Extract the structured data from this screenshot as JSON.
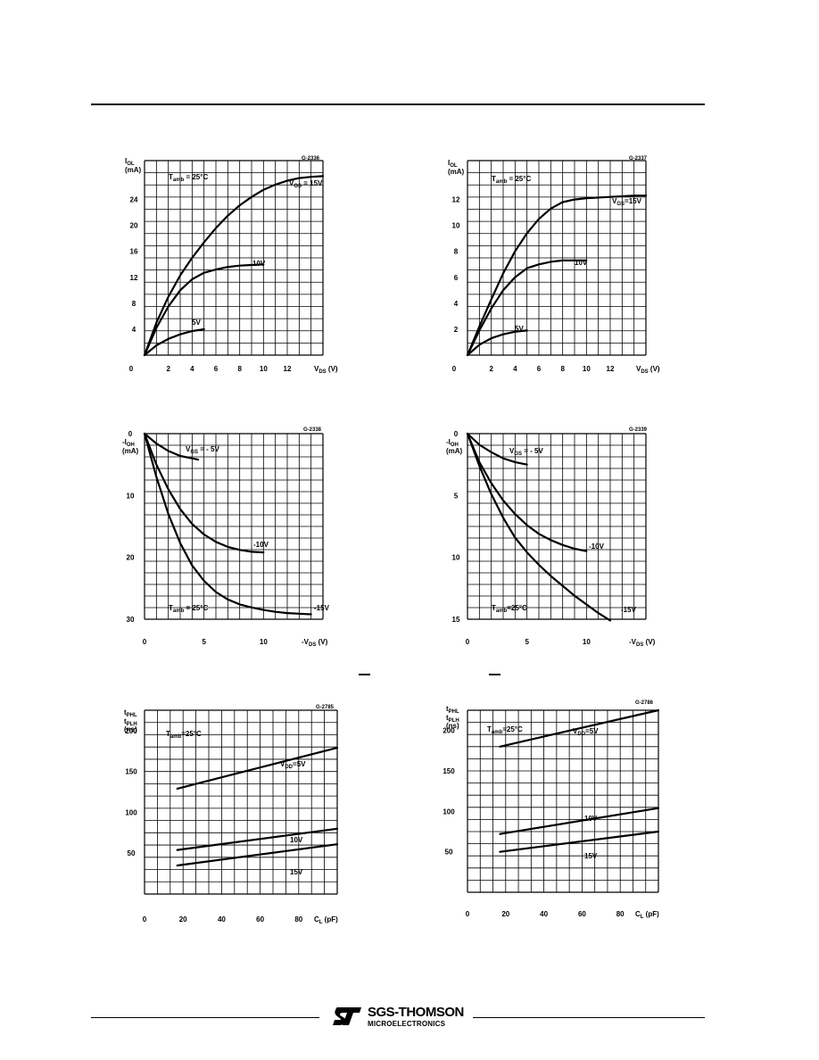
{
  "chart_data": [
    {
      "type": "line",
      "code": "G-2336",
      "ylabel": "I",
      "ylabel_sub": "OL",
      "yunit": "(mA)",
      "xlabel": "V",
      "xlabel_sub": "DS",
      "xunit": "(V)",
      "xlim": [
        0,
        15
      ],
      "ylim": [
        0,
        30
      ],
      "xticks": [
        "0",
        "2",
        "4",
        "6",
        "8",
        "10",
        "12"
      ],
      "yticks": [
        "4",
        "8",
        "12",
        "16",
        "20",
        "24"
      ],
      "annotation": "T",
      "annotation_sub": "amb",
      "annotation_rest": " = 25°C",
      "series": [
        {
          "name": "V",
          "name_sub": "GS",
          "name_rest": " = 15V",
          "points": [
            [
              0,
              0
            ],
            [
              1,
              5
            ],
            [
              2,
              9
            ],
            [
              3,
              12.3
            ],
            [
              4,
              15
            ],
            [
              5,
              17.4
            ],
            [
              6,
              19.6
            ],
            [
              7,
              21.5
            ],
            [
              8,
              23.1
            ],
            [
              9,
              24.4
            ],
            [
              10,
              25.5
            ],
            [
              11,
              26.3
            ],
            [
              12,
              26.9
            ],
            [
              13,
              27.3
            ],
            [
              14,
              27.5
            ],
            [
              15,
              27.6
            ]
          ]
        },
        {
          "name": "10V",
          "points": [
            [
              0,
              0
            ],
            [
              1,
              4.2
            ],
            [
              2,
              7.5
            ],
            [
              3,
              10
            ],
            [
              4,
              11.7
            ],
            [
              5,
              12.7
            ],
            [
              6,
              13.2
            ],
            [
              7,
              13.6
            ],
            [
              8,
              13.8
            ],
            [
              9,
              13.9
            ],
            [
              10,
              14
            ]
          ]
        },
        {
          "name": "5V",
          "points": [
            [
              0,
              0
            ],
            [
              1,
              1.5
            ],
            [
              2,
              2.5
            ],
            [
              3,
              3.2
            ],
            [
              4,
              3.7
            ],
            [
              5,
              4
            ]
          ]
        }
      ]
    },
    {
      "type": "line",
      "code": "G-2337",
      "ylabel": "I",
      "ylabel_sub": "OL",
      "yunit": "(mA)",
      "xlabel": "V",
      "xlabel_sub": "DS",
      "xunit": "(V)",
      "xlim": [
        0,
        15
      ],
      "ylim": [
        0,
        15
      ],
      "xticks": [
        "0",
        "2",
        "4",
        "6",
        "8",
        "10",
        "12"
      ],
      "yticks": [
        "2",
        "4",
        "6",
        "8",
        "10",
        "12"
      ],
      "annotation": "T",
      "annotation_sub": "amb",
      "annotation_rest": " = 25°C",
      "series": [
        {
          "name": "V",
          "name_sub": "GS",
          "name_rest": "=15V",
          "points": [
            [
              0,
              0
            ],
            [
              1,
              2.2
            ],
            [
              2,
              4.3
            ],
            [
              3,
              6.3
            ],
            [
              4,
              8
            ],
            [
              5,
              9.4
            ],
            [
              6,
              10.5
            ],
            [
              7,
              11.3
            ],
            [
              8,
              11.8
            ],
            [
              9,
              12
            ],
            [
              10,
              12.1
            ],
            [
              12,
              12.2
            ],
            [
              14,
              12.3
            ],
            [
              15,
              12.3
            ]
          ]
        },
        {
          "name": "10V",
          "points": [
            [
              0,
              0
            ],
            [
              1,
              1.9
            ],
            [
              2,
              3.6
            ],
            [
              3,
              5
            ],
            [
              4,
              6
            ],
            [
              5,
              6.7
            ],
            [
              6,
              7
            ],
            [
              7,
              7.2
            ],
            [
              8,
              7.3
            ],
            [
              9,
              7.3
            ],
            [
              10,
              7.3
            ]
          ]
        },
        {
          "name": "5V",
          "points": [
            [
              0,
              0
            ],
            [
              1,
              0.8
            ],
            [
              2,
              1.3
            ],
            [
              3,
              1.6
            ],
            [
              4,
              1.8
            ],
            [
              5,
              1.9
            ]
          ]
        }
      ]
    },
    {
      "type": "line",
      "code": "G-2338",
      "ylabel": "-I",
      "ylabel_sub": "OH",
      "yunit": "(mA)",
      "xlabel": "-V",
      "xlabel_sub": "DS",
      "xunit": "(V)",
      "xlim": [
        0,
        15
      ],
      "ylim": [
        0,
        30
      ],
      "yinverted": true,
      "xticks": [
        "0",
        "5",
        "10"
      ],
      "yticks": [
        "0",
        "10",
        "20",
        "30"
      ],
      "annotation": "T",
      "annotation_sub": "amb",
      "annotation_rest": " = 25°C",
      "series": [
        {
          "name": "V",
          "name_sub": "GS",
          "name_rest": " = - 5V",
          "points": [
            [
              0,
              0
            ],
            [
              1,
              1.6
            ],
            [
              2,
              2.8
            ],
            [
              3,
              3.6
            ],
            [
              4,
              4
            ],
            [
              4.5,
              4.2
            ]
          ]
        },
        {
          "name": "-10V",
          "points": [
            [
              0,
              0
            ],
            [
              1,
              5
            ],
            [
              2,
              9
            ],
            [
              3,
              12.2
            ],
            [
              4,
              14.6
            ],
            [
              5,
              16.3
            ],
            [
              6,
              17.5
            ],
            [
              7,
              18.3
            ],
            [
              8,
              18.8
            ],
            [
              9,
              19.1
            ],
            [
              10,
              19.2
            ]
          ]
        },
        {
          "name": "-15V",
          "points": [
            [
              0,
              0
            ],
            [
              1,
              7
            ],
            [
              2,
              13
            ],
            [
              3,
              17.7
            ],
            [
              4,
              21.3
            ],
            [
              5,
              23.8
            ],
            [
              6,
              25.6
            ],
            [
              7,
              26.8
            ],
            [
              8,
              27.6
            ],
            [
              9,
              28.1
            ],
            [
              10,
              28.5
            ],
            [
              11,
              28.8
            ],
            [
              12,
              29
            ],
            [
              13,
              29.1
            ],
            [
              14,
              29.2
            ]
          ]
        }
      ]
    },
    {
      "type": "line",
      "code": "G-2339",
      "ylabel": "-I",
      "ylabel_sub": "OH",
      "yunit": "(mA)",
      "xlabel": "-V",
      "xlabel_sub": "DS",
      "xunit": "(V)",
      "xlim": [
        0,
        15
      ],
      "ylim": [
        0,
        15
      ],
      "yinverted": true,
      "xticks": [
        "0",
        "5",
        "10"
      ],
      "yticks": [
        "0",
        "5",
        "10",
        "15"
      ],
      "annotation": "T",
      "annotation_sub": "amb",
      "annotation_rest": "=25°C",
      "series": [
        {
          "name": "V",
          "name_sub": "GS",
          "name_rest": " = - 5V",
          "points": [
            [
              0,
              0
            ],
            [
              1,
              0.9
            ],
            [
              2,
              1.5
            ],
            [
              3,
              2
            ],
            [
              4,
              2.3
            ],
            [
              5,
              2.5
            ]
          ]
        },
        {
          "name": "-10V",
          "points": [
            [
              0,
              0
            ],
            [
              1,
              2.3
            ],
            [
              2,
              4
            ],
            [
              3,
              5.4
            ],
            [
              4,
              6.5
            ],
            [
              5,
              7.4
            ],
            [
              6,
              8.1
            ],
            [
              7,
              8.6
            ],
            [
              8,
              9
            ],
            [
              9,
              9.3
            ],
            [
              10,
              9.5
            ]
          ]
        },
        {
          "name": "-15V",
          "points": [
            [
              0,
              0
            ],
            [
              1,
              2.6
            ],
            [
              2,
              4.9
            ],
            [
              3,
              6.8
            ],
            [
              4,
              8.4
            ],
            [
              5,
              9.6
            ],
            [
              6,
              10.6
            ],
            [
              7,
              11.5
            ],
            [
              8,
              12.3
            ],
            [
              9,
              13.1
            ],
            [
              10,
              13.8
            ],
            [
              11,
              14.5
            ],
            [
              12,
              15.1
            ]
          ]
        }
      ]
    },
    {
      "type": "line",
      "code": "G-2785",
      "ylabel": "t",
      "ylabel_sub": "PHL",
      "ylabel2": "t",
      "ylabel2_sub": "PLH",
      "yunit": "(ns)",
      "xlabel": "C",
      "xlabel_sub": "L",
      "xunit": "(pF)",
      "xlim": [
        0,
        100
      ],
      "ylim": [
        0,
        225
      ],
      "xticks": [
        "0",
        "20",
        "40",
        "60",
        "80"
      ],
      "yticks": [
        "50",
        "100",
        "150",
        "200"
      ],
      "annotation": "T",
      "annotation_sub": "amb",
      "annotation_rest": "=25°C",
      "series": [
        {
          "name": "V",
          "name_sub": "DD",
          "name_rest": "=5V",
          "points": [
            [
              17,
              129
            ],
            [
              100,
              179
            ]
          ]
        },
        {
          "name": "10V",
          "points": [
            [
              17,
              54
            ],
            [
              100,
              80
            ]
          ]
        },
        {
          "name": "15V",
          "points": [
            [
              17,
              35
            ],
            [
              100,
              61
            ]
          ]
        }
      ]
    },
    {
      "type": "line",
      "code": "G-2786",
      "ylabel": "t",
      "ylabel_sub": "PHL",
      "ylabel2": "t",
      "ylabel2_sub": "PLH",
      "yunit": "(ns)",
      "xlabel": "C",
      "xlabel_sub": "L",
      "xunit": "(pF)",
      "xlim": [
        0,
        100
      ],
      "ylim": [
        0,
        225
      ],
      "xticks": [
        "0",
        "20",
        "40",
        "60",
        "80"
      ],
      "yticks": [
        "50",
        "100",
        "150",
        "200"
      ],
      "annotation": "T",
      "annotation_sub": "amb",
      "annotation_rest": "=25°C",
      "series": [
        {
          "name": "V",
          "name_sub": "DD",
          "name_rest": "=5V",
          "points": [
            [
              17,
              180
            ],
            [
              100,
              225
            ]
          ]
        },
        {
          "name": "10V",
          "points": [
            [
              17,
              72
            ],
            [
              100,
              104
            ]
          ]
        },
        {
          "name": "15V",
          "points": [
            [
              17,
              50
            ],
            [
              100,
              75
            ]
          ]
        }
      ]
    }
  ],
  "footer": {
    "brand": "SGS-THOMSON",
    "subbrand": "MICROELECTRONICS"
  }
}
